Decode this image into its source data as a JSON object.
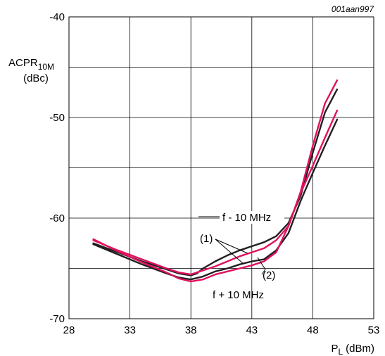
{
  "chart_data": {
    "type": "line",
    "figure_code": "001aan997",
    "ylabel_main": "ACPR",
    "ylabel_sub": "10M",
    "ylabel_unit": "(dBc)",
    "xlabel_main": "P",
    "xlabel_sub": "L",
    "xlabel_unit": "(dBm)",
    "xlim": [
      28,
      53
    ],
    "ylim": [
      -70,
      -40
    ],
    "x_ticks": [
      "28",
      "33",
      "38",
      "43",
      "48",
      "53"
    ],
    "y_ticks": [
      "-40",
      "-50",
      "-60",
      "-70"
    ],
    "grid": true,
    "x_grid_step": 5,
    "y_grid_step": 5,
    "series_colors": {
      "(1)": "#231f20",
      "(2)": "#e0115f"
    },
    "annotations": {
      "upper_label": "f - 10 MHz",
      "lower_label": "f + 10 MHz",
      "marker1": "(1)",
      "marker2": "(2)"
    },
    "series": [
      {
        "group": "f - 10 MHz",
        "curve": "(1)",
        "x": [
          30,
          32,
          34,
          36,
          37,
          38,
          38.5,
          39,
          40,
          41,
          42,
          43,
          44,
          45,
          46,
          47,
          48,
          49,
          50
        ],
        "y": [
          -62.5,
          -63.4,
          -64.3,
          -65.1,
          -65.5,
          -65.7,
          -65.5,
          -65.0,
          -64.3,
          -63.7,
          -63.2,
          -62.8,
          -62.4,
          -61.8,
          -60.5,
          -57.8,
          -53.5,
          -49.5,
          -47.2
        ]
      },
      {
        "group": "f - 10 MHz",
        "curve": "(2)",
        "x": [
          30,
          32,
          34,
          36,
          37,
          38,
          38.5,
          39,
          40,
          41,
          42,
          43,
          44,
          45,
          46,
          47,
          48,
          49,
          50
        ],
        "y": [
          -62.2,
          -63.2,
          -64.1,
          -65.0,
          -65.4,
          -65.6,
          -65.4,
          -65.2,
          -64.8,
          -64.3,
          -63.8,
          -63.4,
          -63.0,
          -62.2,
          -60.8,
          -57.4,
          -52.8,
          -48.6,
          -46.3
        ]
      },
      {
        "group": "f + 10 MHz",
        "curve": "(1)",
        "x": [
          30,
          32,
          34,
          36,
          37,
          38,
          39,
          40,
          41,
          42,
          43,
          44,
          45,
          46,
          47,
          48,
          49,
          50
        ],
        "y": [
          -62.6,
          -63.6,
          -64.6,
          -65.5,
          -65.9,
          -66.1,
          -65.8,
          -65.3,
          -65.0,
          -64.6,
          -64.3,
          -64.1,
          -63.2,
          -61.5,
          -58.3,
          -55.5,
          -52.8,
          -50.2
        ]
      },
      {
        "group": "f + 10 MHz",
        "curve": "(2)",
        "x": [
          30,
          32,
          34,
          36,
          37,
          38,
          39,
          40,
          41,
          42,
          43,
          44,
          45,
          46,
          47,
          48,
          49,
          50
        ],
        "y": [
          -62.1,
          -63.3,
          -64.4,
          -65.4,
          -66.0,
          -66.3,
          -66.1,
          -65.6,
          -65.3,
          -65.0,
          -64.7,
          -64.3,
          -63.4,
          -60.8,
          -57.5,
          -54.8,
          -52.0,
          -49.3
        ]
      }
    ]
  }
}
